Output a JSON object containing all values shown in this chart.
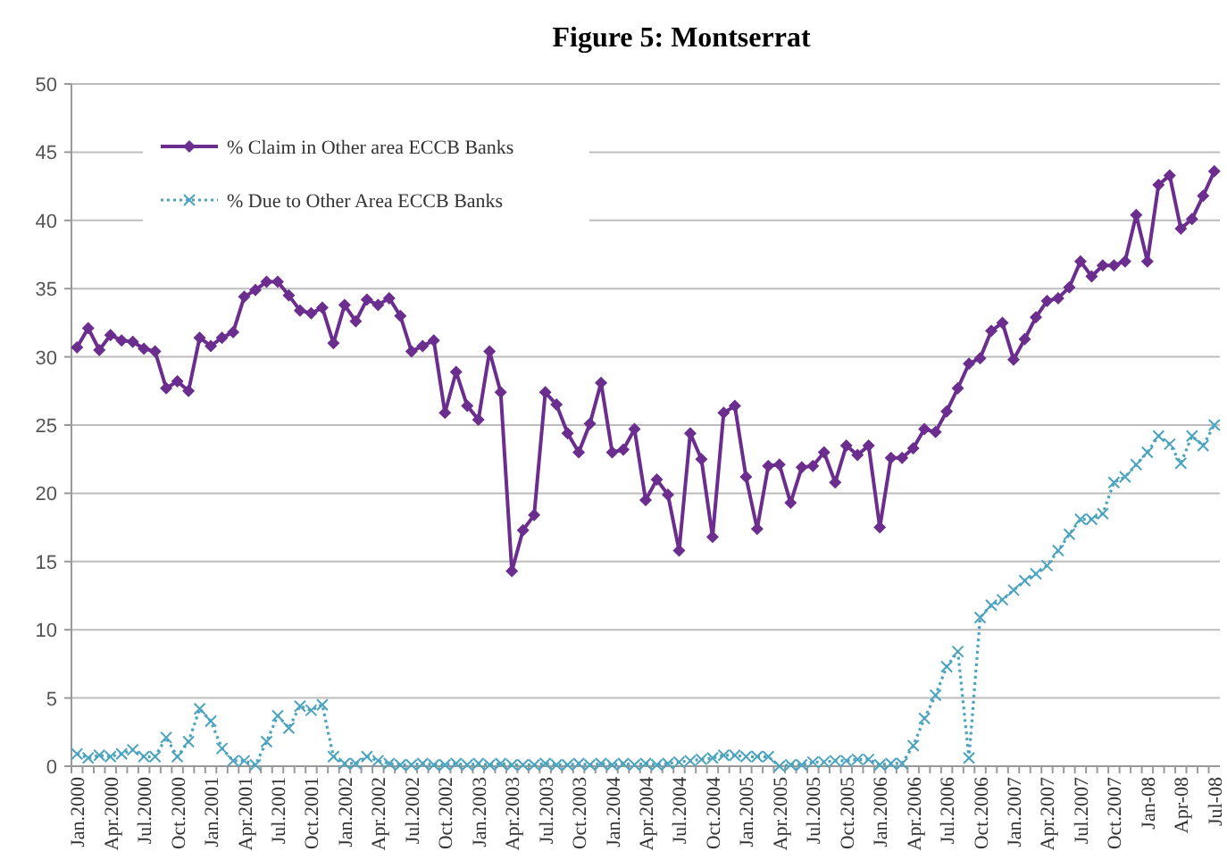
{
  "chart_data": {
    "type": "line",
    "title": "Figure 5: Montserrat",
    "categories": [
      "Jan.2000",
      null,
      null,
      "Apr.2000",
      null,
      null,
      "Jul.2000",
      null,
      null,
      "Oct.2000",
      null,
      null,
      "Jan.2001",
      null,
      null,
      "Apr.2001",
      null,
      null,
      "Jul.2001",
      null,
      null,
      "Oct.2001",
      null,
      null,
      "Jan.2002",
      null,
      null,
      "Apr.2002",
      null,
      null,
      "Jul.2002",
      null,
      null,
      "Oct.2002",
      null,
      null,
      "Jan.2003",
      null,
      null,
      "Apr.2003",
      null,
      null,
      "Jul.2003",
      null,
      null,
      "Oct.2003",
      null,
      null,
      "Jan.2004",
      null,
      null,
      "Apr.2004",
      null,
      null,
      "Jul.2004",
      null,
      null,
      "Oct.2004",
      null,
      null,
      "Jan.2005",
      null,
      null,
      "Apr.2005",
      null,
      null,
      "Jul.2005",
      null,
      null,
      "Oct.2005",
      null,
      null,
      "Jan.2006",
      null,
      null,
      "Apr.2006",
      null,
      null,
      "Jul.2006",
      null,
      null,
      "Oct.2006",
      null,
      null,
      "Jan.2007",
      null,
      null,
      "Apr.2007",
      null,
      null,
      "Jul.2007",
      null,
      null,
      "Oct.2007",
      null,
      null,
      "Jan-08",
      null,
      null,
      "Apr-08",
      null,
      null,
      "Jul-08"
    ],
    "series": [
      {
        "name": "% Claim in Other area ECCB Banks",
        "color": "#6b2d8e",
        "marker": "diamond",
        "line_style": "solid",
        "values": [
          30.7,
          32.1,
          30.5,
          31.6,
          31.2,
          31.1,
          30.6,
          30.4,
          27.7,
          28.2,
          27.5,
          31.4,
          30.8,
          31.4,
          31.8,
          34.4,
          34.9,
          35.5,
          35.5,
          34.5,
          33.4,
          33.2,
          33.6,
          31.0,
          33.8,
          32.6,
          34.2,
          33.8,
          34.3,
          33.0,
          30.4,
          30.8,
          31.2,
          25.9,
          28.9,
          26.4,
          25.4,
          30.4,
          27.4,
          14.3,
          17.3,
          18.4,
          27.4,
          26.5,
          24.4,
          23.0,
          25.1,
          28.1,
          23.0,
          23.2,
          24.7,
          19.5,
          21.0,
          19.9,
          15.8,
          24.4,
          22.5,
          16.8,
          25.9,
          26.4,
          21.2,
          17.4,
          22.0,
          22.1,
          19.3,
          21.9,
          22.0,
          23.0,
          20.8,
          23.5,
          22.8,
          23.5,
          17.5,
          22.6,
          22.6,
          23.3,
          24.7,
          24.5,
          26.0,
          27.7,
          29.5,
          29.9,
          31.9,
          32.5,
          29.8,
          31.3,
          32.9,
          34.1,
          34.3,
          35.1,
          37.0,
          35.9,
          36.7,
          36.7,
          37.0,
          40.4,
          37.0,
          42.6,
          43.3,
          39.4,
          40.1,
          41.8,
          43.6
        ]
      },
      {
        "name": "% Due to Other Area ECCB Banks",
        "color": "#4aa3bf",
        "marker": "cross",
        "line_style": "dotted",
        "values": [
          0.9,
          0.6,
          0.8,
          0.7,
          0.9,
          1.2,
          0.7,
          0.7,
          2.1,
          0.7,
          1.8,
          4.2,
          3.3,
          1.3,
          0.4,
          0.4,
          0.1,
          1.8,
          3.7,
          2.8,
          4.4,
          4.1,
          4.5,
          0.7,
          0.2,
          0.2,
          0.7,
          0.4,
          0.2,
          0.1,
          0.1,
          0.2,
          0.1,
          0.1,
          0.2,
          0.1,
          0.2,
          0.1,
          0.2,
          0.1,
          0.1,
          0.1,
          0.2,
          0.1,
          0.1,
          0.2,
          0.1,
          0.2,
          0.1,
          0.2,
          0.1,
          0.2,
          0.1,
          0.2,
          0.3,
          0.4,
          0.5,
          0.6,
          0.8,
          0.8,
          0.7,
          0.7,
          0.7,
          0.0,
          0.1,
          0.1,
          0.3,
          0.3,
          0.4,
          0.4,
          0.5,
          0.5,
          0.1,
          0.2,
          0.2,
          1.5,
          3.5,
          5.2,
          7.3,
          8.4,
          0.6,
          10.9,
          11.8,
          12.2,
          12.9,
          13.6,
          14.1,
          14.7,
          15.8,
          17.0,
          18.1,
          18.1,
          18.5,
          20.8,
          21.2,
          22.1,
          23.0,
          24.2,
          23.6,
          22.2,
          24.2,
          23.5,
          25.0
        ]
      }
    ],
    "ylim": [
      0,
      50
    ],
    "yticks": [
      0,
      5,
      10,
      15,
      20,
      25,
      30,
      35,
      40,
      45,
      50
    ],
    "grid": "y",
    "legend": "top left"
  }
}
